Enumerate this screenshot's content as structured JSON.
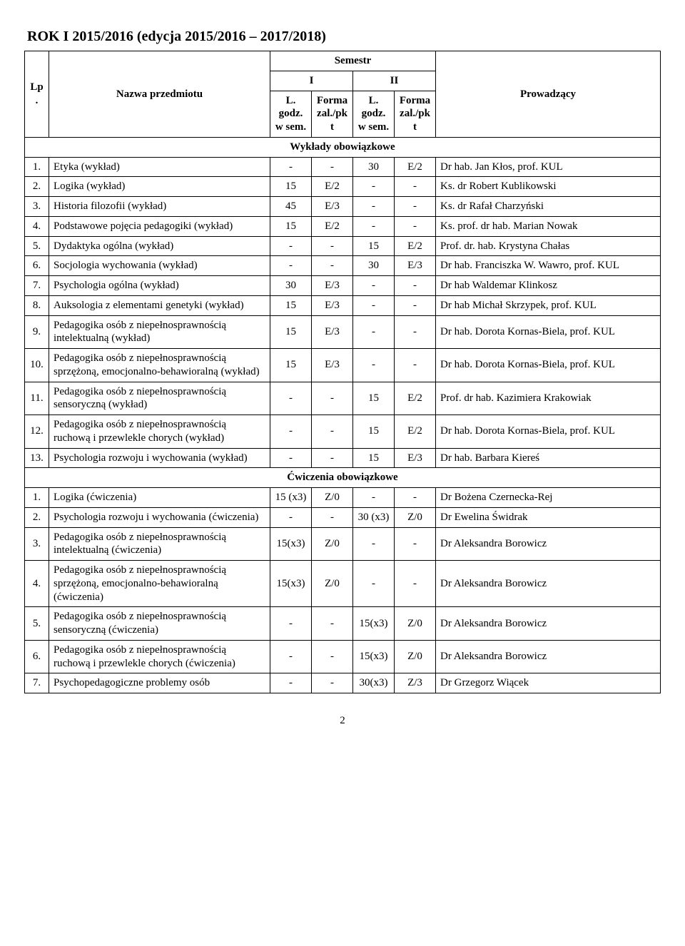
{
  "title": "ROK I  2015/2016 (edycja 2015/2016 – 2017/2018)",
  "header": {
    "lp": "Lp.",
    "name": "Nazwa przedmiotu",
    "semestr": "Semestr",
    "I": "I",
    "II": "II",
    "lgodz": "L. godz. w sem.",
    "forma": "Forma zal./pkt",
    "prowadzacy": "Prowadzący"
  },
  "sections": [
    {
      "title": "Wykłady obowiązkowe",
      "rows": [
        {
          "lp": "1.",
          "name": "Etyka (wykład)",
          "c": [
            "-",
            "-",
            "30",
            "E/2"
          ],
          "prov": "Dr hab. Jan Kłos, prof. KUL"
        },
        {
          "lp": "2.",
          "name": "Logika (wykład)",
          "c": [
            "15",
            "E/2",
            "-",
            "-"
          ],
          "prov": "Ks. dr Robert Kublikowski"
        },
        {
          "lp": "3.",
          "name": "Historia filozofii (wykład)",
          "c": [
            "45",
            "E/3",
            "-",
            "-"
          ],
          "prov": "Ks. dr Rafał Charzyński"
        },
        {
          "lp": "4.",
          "name": "Podstawowe pojęcia pedagogiki (wykład)",
          "c": [
            "15",
            "E/2",
            "-",
            "-"
          ],
          "prov": "Ks. prof. dr hab. Marian Nowak"
        },
        {
          "lp": "5.",
          "name": "Dydaktyka ogólna (wykład)",
          "c": [
            "-",
            "-",
            "15",
            "E/2"
          ],
          "prov": "Prof. dr. hab. Krystyna Chałas"
        },
        {
          "lp": "6.",
          "name": "Socjologia wychowania (wykład)",
          "c": [
            "-",
            "-",
            "30",
            "E/3"
          ],
          "prov": "Dr hab. Franciszka W. Wawro, prof. KUL"
        },
        {
          "lp": "7.",
          "name": "Psychologia ogólna (wykład)",
          "c": [
            "30",
            "E/3",
            "-",
            "-"
          ],
          "prov": "Dr hab Waldemar Klinkosz"
        },
        {
          "lp": "8.",
          "name": "Auksologia z elementami genetyki (wykład)",
          "c": [
            "15",
            "E/3",
            "-",
            "-"
          ],
          "prov": "Dr hab Michał Skrzypek, prof. KUL"
        },
        {
          "lp": "9.",
          "name": "Pedagogika osób z niepełnosprawnością intelektualną (wykład)",
          "c": [
            "15",
            "E/3",
            "-",
            "-"
          ],
          "prov": "Dr hab. Dorota Kornas-Biela, prof. KUL"
        },
        {
          "lp": "10.",
          "name": "Pedagogika osób z niepełnosprawnością sprzężoną, emocjonalno-behawioralną (wykład)",
          "c": [
            "15",
            "E/3",
            "-",
            "-"
          ],
          "prov": "Dr hab. Dorota Kornas-Biela, prof. KUL"
        },
        {
          "lp": "11.",
          "name": "Pedagogika osób z niepełnosprawnością sensoryczną (wykład)",
          "c": [
            "-",
            "-",
            "15",
            "E/2"
          ],
          "prov": "Prof. dr hab. Kazimiera Krakowiak"
        },
        {
          "lp": "12.",
          "name": "Pedagogika osób z niepełnosprawnością ruchową i przewlekle chorych (wykład)",
          "c": [
            "-",
            "-",
            "15",
            "E/2"
          ],
          "prov": "Dr hab. Dorota Kornas-Biela, prof. KUL"
        },
        {
          "lp": "13.",
          "name": "Psychologia rozwoju i wychowania (wykład)",
          "c": [
            "-",
            "-",
            "15",
            "E/3"
          ],
          "prov": "Dr hab. Barbara Kiereś"
        }
      ]
    },
    {
      "title": "Ćwiczenia obowiązkowe",
      "rows": [
        {
          "lp": "1.",
          "name": "Logika (ćwiczenia)",
          "c": [
            "15 (x3)",
            "Z/0",
            "-",
            "-"
          ],
          "prov": "Dr Bożena Czernecka-Rej"
        },
        {
          "lp": "2.",
          "name": "Psychologia rozwoju i wychowania (ćwiczenia)",
          "c": [
            "-",
            "-",
            "30 (x3)",
            "Z/0"
          ],
          "prov": "Dr Ewelina Świdrak"
        },
        {
          "lp": "3.",
          "name": "Pedagogika osób z niepełnosprawnością intelektualną (ćwiczenia)",
          "c": [
            "15(x3)",
            "Z/0",
            "-",
            "-"
          ],
          "prov": "Dr Aleksandra Borowicz"
        },
        {
          "lp": "4.",
          "name": "Pedagogika osób z niepełnosprawnością sprzężoną, emocjonalno-behawioralną (ćwiczenia)",
          "c": [
            "15(x3)",
            "Z/0",
            "-",
            "-"
          ],
          "prov": "Dr Aleksandra Borowicz"
        },
        {
          "lp": "5.",
          "name": "Pedagogika osób z niepełnosprawnością sensoryczną (ćwiczenia)",
          "c": [
            "-",
            "-",
            "15(x3)",
            "Z/0"
          ],
          "prov": "Dr Aleksandra Borowicz"
        },
        {
          "lp": "6.",
          "name": "Pedagogika osób z niepełnosprawnością ruchową i przewlekle chorych (ćwiczenia)",
          "c": [
            "-",
            "-",
            "15(x3)",
            "Z/0"
          ],
          "prov": "Dr Aleksandra Borowicz"
        },
        {
          "lp": "7.",
          "name": "Psychopedagogiczne problemy osób",
          "c": [
            "-",
            "-",
            "30(x3)",
            "Z/3"
          ],
          "prov": "Dr Grzegorz Wiącek"
        }
      ]
    }
  ],
  "pageNumber": "2"
}
